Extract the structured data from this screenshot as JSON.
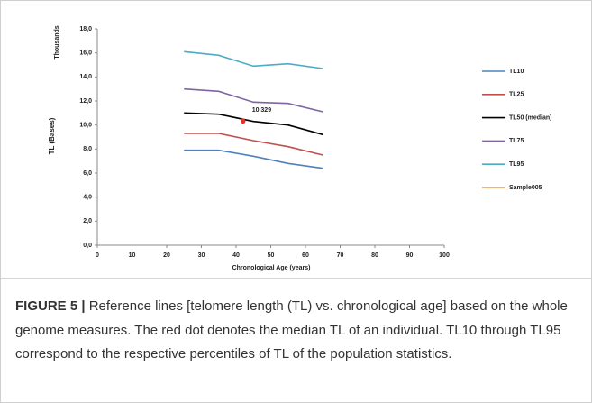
{
  "chart_data": {
    "type": "line",
    "y_unit_label": "Thousands",
    "ylabel": "TL  (Bases)",
    "xlabel": "Chronological Age  (years)",
    "x": [
      25,
      35,
      45,
      55,
      65
    ],
    "series": [
      {
        "name": "TL10",
        "color": "#4f81bd",
        "values": [
          7.9,
          7.9,
          7.4,
          6.8,
          6.4
        ]
      },
      {
        "name": "TL25",
        "color": "#c0504d",
        "values": [
          9.3,
          9.3,
          8.7,
          8.2,
          7.5
        ]
      },
      {
        "name": "TL50 (median)",
        "color": "#000000",
        "values": [
          11.0,
          10.9,
          10.3,
          10.0,
          9.2
        ]
      },
      {
        "name": "TL75",
        "color": "#8064a2",
        "values": [
          13.0,
          12.8,
          11.9,
          11.8,
          11.1
        ]
      },
      {
        "name": "TL95",
        "color": "#4bacc6",
        "values": [
          16.1,
          15.8,
          14.9,
          15.1,
          14.7
        ]
      },
      {
        "name": "Sample005",
        "color": "#f79646",
        "marker_color": "#e8302a",
        "x": [
          42
        ],
        "values": [
          10.329
        ],
        "value_labels": [
          "10,329"
        ]
      }
    ],
    "xlim": [
      0,
      100
    ],
    "xticks": [
      0,
      10,
      20,
      30,
      40,
      50,
      60,
      70,
      80,
      90,
      100
    ],
    "ylim": [
      0,
      18
    ],
    "yticks": [
      {
        "value": 0,
        "label": "0,0"
      },
      {
        "value": 2,
        "label": "2,0"
      },
      {
        "value": 4,
        "label": "4,0"
      },
      {
        "value": 6,
        "label": "6,0"
      },
      {
        "value": 8,
        "label": "8,0"
      },
      {
        "value": 10,
        "label": "10,0"
      },
      {
        "value": 12,
        "label": "12,0"
      },
      {
        "value": 14,
        "label": "14,0"
      },
      {
        "value": 16,
        "label": "16,0"
      },
      {
        "value": 18,
        "label": "18,0"
      }
    ],
    "grid": false,
    "legend": "right"
  },
  "caption": {
    "label": "FIGURE 5 |",
    "text": "Reference lines [telomere length (TL) vs. chronological age] based on the whole genome measures. The red dot denotes the median TL of an individual. TL10 through TL95 correspond to the respective percentiles of TL of the population statistics."
  }
}
